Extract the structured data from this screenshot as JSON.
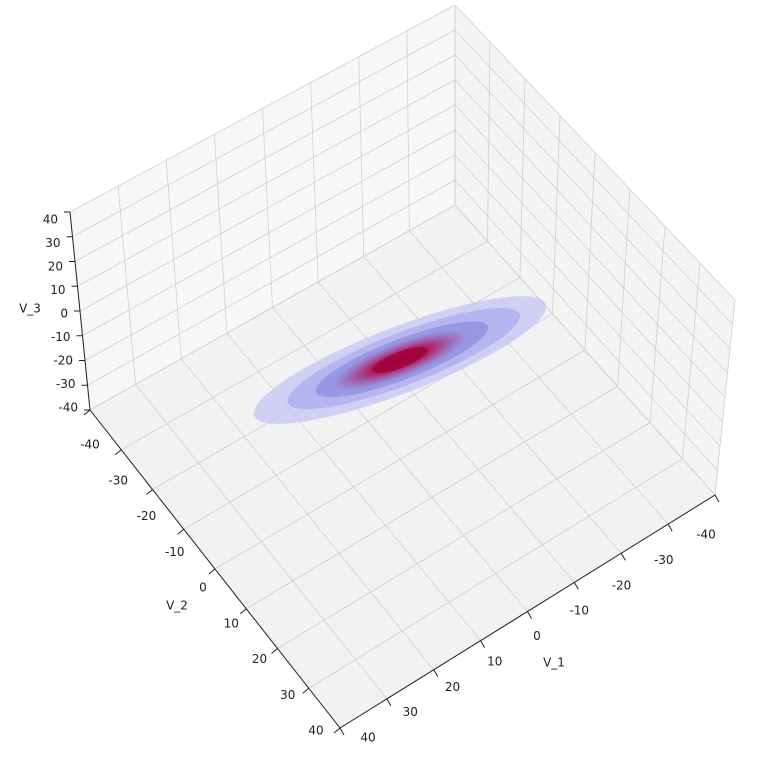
{
  "chart_data": {
    "type": "scatter3d",
    "xlabel": "V_1",
    "ylabel": "V_2",
    "zlabel": "V_3",
    "xlim": [
      -40,
      40
    ],
    "xticks": [
      -40,
      -30,
      -20,
      -10,
      0,
      10,
      20,
      30,
      40
    ],
    "ylim": [
      -40,
      40
    ],
    "yticks": [
      -40,
      -30,
      -20,
      -10,
      0,
      10,
      20,
      30,
      40
    ],
    "zlim": [
      -40,
      40
    ],
    "zticks": [
      -40,
      -30,
      -20,
      -10,
      0,
      10,
      20,
      30,
      40
    ],
    "grid": true
  }
}
